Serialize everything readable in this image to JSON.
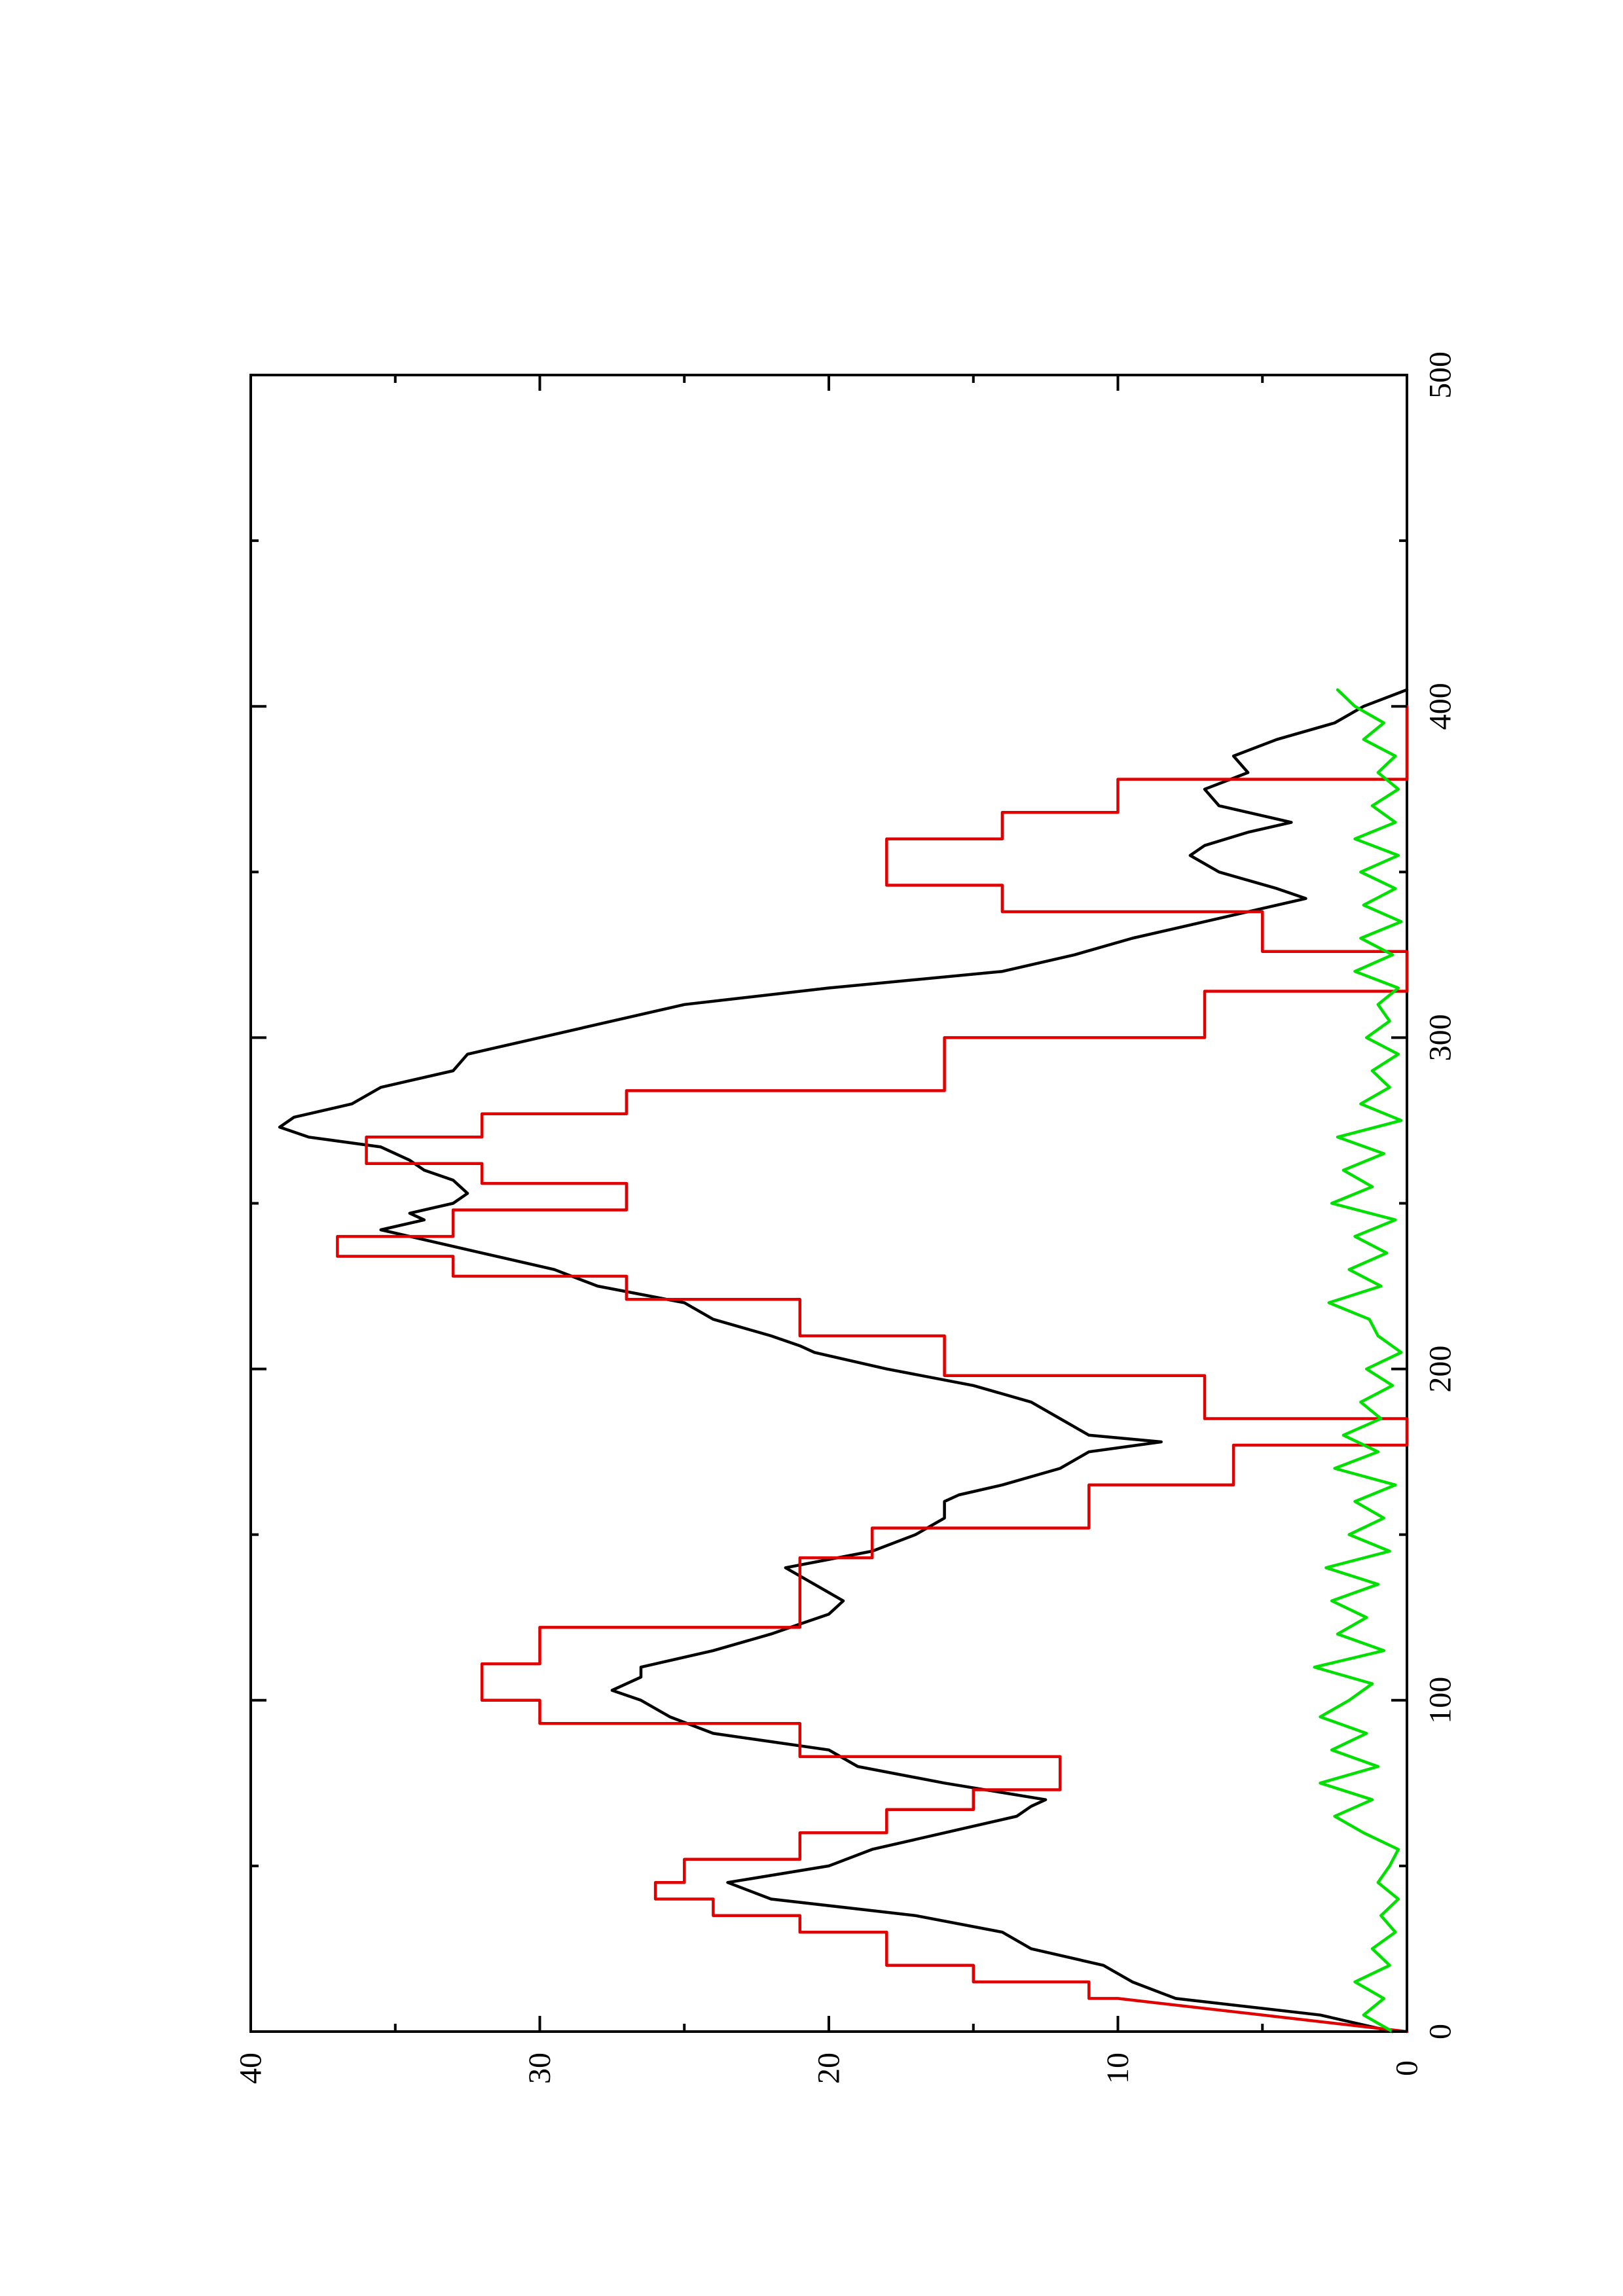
{
  "chart_data": {
    "type": "line",
    "orientation": "rotated 90° counter-clockwise on a portrait page",
    "title": "",
    "xlabel": "",
    "ylabel": "",
    "xlim": [
      0,
      500
    ],
    "ylim": [
      0,
      40
    ],
    "x_ticks": [
      "0",
      "100",
      "200",
      "300",
      "400",
      "500"
    ],
    "y_ticks": [
      "0",
      "10",
      "20",
      "30",
      "40"
    ],
    "grid": false,
    "legend": "none",
    "colors": {
      "black": "#000000",
      "red": "#e00000",
      "green": "#00e000"
    },
    "series": [
      {
        "color": "#000000",
        "x": [
          0,
          5,
          10,
          15,
          20,
          25,
          30,
          35,
          40,
          45,
          50,
          55,
          60,
          65,
          68,
          70,
          75,
          80,
          85,
          90,
          95,
          100,
          103,
          107,
          110,
          115,
          120,
          123,
          126,
          130,
          135,
          140,
          145,
          150,
          155,
          160,
          162,
          165,
          170,
          175,
          178,
          180,
          185,
          190,
          195,
          200,
          205,
          207,
          210,
          215,
          220,
          225,
          230,
          235,
          240,
          242,
          245,
          247,
          250,
          253,
          257,
          260,
          263,
          267,
          270,
          273,
          276,
          280,
          285,
          290,
          295,
          300,
          305,
          310,
          315,
          320,
          325,
          330,
          335,
          340,
          342,
          345,
          350,
          355,
          358,
          362,
          365,
          370,
          375,
          380,
          385,
          390,
          395,
          400,
          405
        ],
        "y": [
          0.5,
          3,
          8,
          9.5,
          10.5,
          13,
          14,
          17,
          22,
          23.5,
          20,
          18.5,
          16,
          13.5,
          13,
          12.5,
          16,
          19,
          20,
          24,
          25.5,
          26.5,
          27.5,
          26.5,
          26.5,
          24,
          22,
          21,
          20,
          19.5,
          20.5,
          21.5,
          18.5,
          17,
          16,
          16,
          15.5,
          14,
          12,
          11,
          8.5,
          11,
          12,
          13,
          15,
          18,
          20.5,
          21,
          22,
          24,
          25,
          28,
          29.5,
          32,
          34.5,
          35.5,
          34,
          34.5,
          33,
          32.5,
          33,
          34,
          34.5,
          35.5,
          38,
          39,
          38.5,
          36.5,
          35.5,
          33,
          32.5,
          30,
          27.5,
          25,
          20,
          14,
          11.5,
          9.5,
          7,
          4.5,
          3.5,
          4.5,
          6.5,
          7.5,
          7,
          5.5,
          4,
          6.5,
          7,
          5.5,
          6,
          4.5,
          2.5,
          1.5,
          0
        ]
      },
      {
        "color": "#e00000",
        "x": [
          0,
          10,
          10,
          15,
          15,
          20,
          20,
          30,
          30,
          35,
          35,
          40,
          40,
          45,
          45,
          52,
          52,
          60,
          60,
          67,
          67,
          73,
          73,
          83,
          83,
          93,
          93,
          100,
          100,
          111,
          111,
          122,
          122,
          143,
          143,
          152,
          152,
          165,
          165,
          177,
          177,
          185,
          185,
          198,
          198,
          210,
          210,
          221,
          221,
          228,
          228,
          234,
          234,
          240,
          240,
          248,
          248,
          256,
          256,
          262,
          262,
          270,
          270,
          277,
          277,
          284,
          284,
          300,
          300,
          314,
          314,
          326,
          326,
          338,
          338,
          346,
          346,
          360,
          360,
          368,
          368,
          378,
          378,
          388,
          388,
          400,
          400
        ],
        "y": [
          0,
          10,
          11,
          11,
          15,
          15,
          18,
          18,
          21,
          21,
          24,
          24,
          26,
          26,
          25,
          25,
          21,
          21,
          18,
          18,
          15,
          15,
          12,
          12,
          21,
          21,
          30,
          30,
          32,
          32,
          30,
          30,
          21,
          21,
          18.5,
          18.5,
          11,
          11,
          6,
          6,
          0,
          0,
          7,
          7,
          16,
          16,
          21,
          21,
          27,
          27,
          33,
          33,
          37,
          37,
          33,
          33,
          27,
          27,
          32,
          32,
          36,
          36,
          32,
          32,
          27,
          27,
          16,
          16,
          7,
          7,
          0,
          0,
          5,
          5,
          14,
          14,
          18,
          18,
          14,
          14,
          10,
          10,
          0,
          0,
          0,
          0,
          0
        ]
      },
      {
        "color": "#00e000",
        "x": [
          0,
          5,
          10,
          15,
          20,
          25,
          30,
          35,
          40,
          45,
          50,
          55,
          60,
          65,
          70,
          75,
          80,
          85,
          90,
          95,
          100,
          105,
          110,
          115,
          120,
          125,
          130,
          135,
          140,
          145,
          150,
          155,
          160,
          165,
          170,
          175,
          180,
          185,
          190,
          195,
          200,
          205,
          210,
          215,
          220,
          225,
          230,
          235,
          240,
          245,
          250,
          255,
          260,
          265,
          270,
          275,
          280,
          285,
          290,
          295,
          300,
          305,
          310,
          315,
          320,
          325,
          330,
          335,
          340,
          345,
          350,
          355,
          360,
          365,
          370,
          375,
          380,
          385,
          390,
          395,
          400,
          405
        ],
        "y": [
          0.5,
          1.5,
          0.8,
          1.8,
          0.6,
          1.2,
          0.4,
          0.9,
          0.3,
          1.0,
          0.6,
          0.3,
          1.5,
          2.5,
          1.2,
          3.0,
          1.0,
          2.6,
          1.4,
          3.0,
          2.0,
          1.2,
          3.2,
          0.8,
          2.4,
          1.4,
          2.6,
          1.0,
          2.8,
          0.6,
          2.0,
          0.8,
          1.8,
          0.4,
          2.5,
          1.0,
          2.2,
          0.9,
          1.6,
          0.5,
          1.4,
          0.2,
          1.0,
          1.3,
          2.7,
          0.9,
          2.0,
          0.7,
          1.8,
          0.4,
          2.6,
          1.2,
          2.2,
          0.8,
          2.4,
          0.2,
          1.6,
          0.6,
          1.2,
          0.3,
          1.4,
          0.6,
          1.0,
          0.3,
          1.8,
          0.5,
          1.6,
          0.2,
          1.5,
          0.4,
          1.6,
          0.3,
          1.8,
          0.4,
          1.2,
          0.3,
          1.0,
          0.4,
          1.5,
          0.8,
          1.8,
          2.4
        ]
      }
    ]
  }
}
